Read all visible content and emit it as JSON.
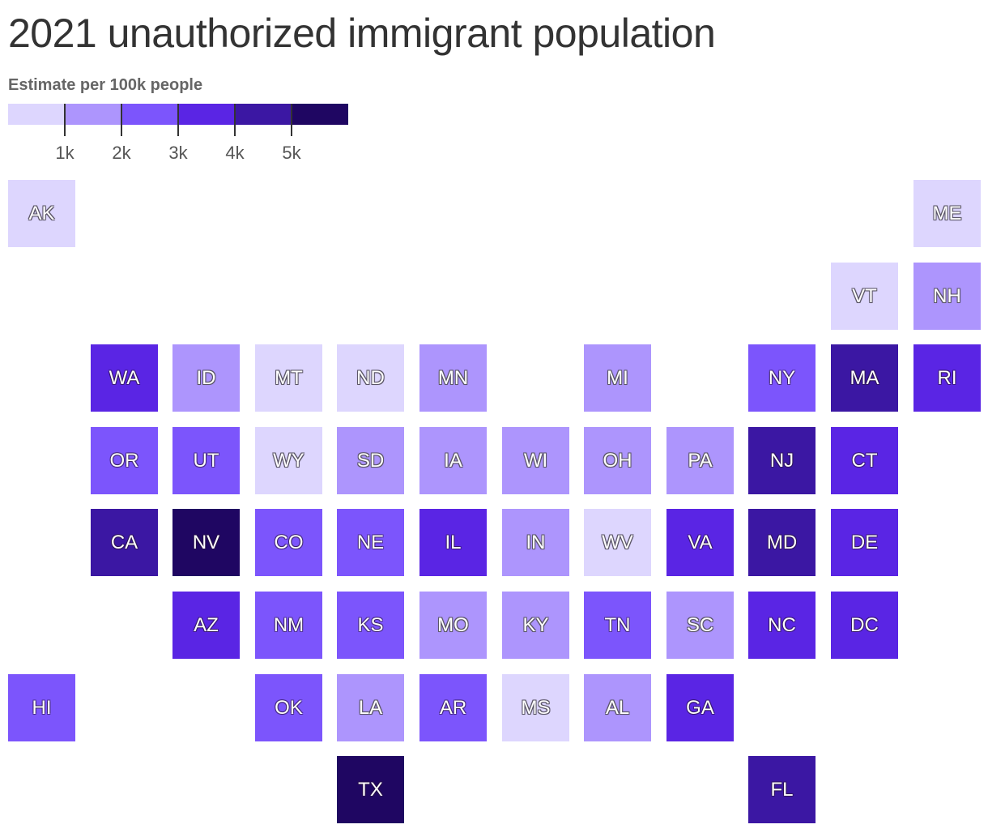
{
  "title": "2021 unauthorized immigrant population",
  "legend": {
    "title": "Estimate per 100k people",
    "colors": [
      "#ddd6fe",
      "#ad95fd",
      "#7c55fc",
      "#5a25e4",
      "#3b17a3",
      "#1f0662"
    ],
    "thresholds": [
      "1k",
      "2k",
      "3k",
      "4k",
      "5k"
    ]
  },
  "chart_data": {
    "type": "tile-map",
    "title": "2021 unauthorized immigrant population",
    "legend_title": "Estimate per 100k people",
    "value_unit": "estimate per 100k people (binned)",
    "bins": [
      "<1k",
      "1k–2k",
      "2k–3k",
      "3k–4k",
      "4k–5k",
      ">5k"
    ],
    "states": [
      {
        "code": "AK",
        "bin": 0,
        "row": 0,
        "col": 0
      },
      {
        "code": "ME",
        "bin": 0,
        "row": 0,
        "col": 11
      },
      {
        "code": "VT",
        "bin": 0,
        "row": 1,
        "col": 10
      },
      {
        "code": "NH",
        "bin": 1,
        "row": 1,
        "col": 11
      },
      {
        "code": "WA",
        "bin": 3,
        "row": 2,
        "col": 1
      },
      {
        "code": "ID",
        "bin": 1,
        "row": 2,
        "col": 2
      },
      {
        "code": "MT",
        "bin": 0,
        "row": 2,
        "col": 3
      },
      {
        "code": "ND",
        "bin": 0,
        "row": 2,
        "col": 4
      },
      {
        "code": "MN",
        "bin": 1,
        "row": 2,
        "col": 5
      },
      {
        "code": "MI",
        "bin": 1,
        "row": 2,
        "col": 7
      },
      {
        "code": "NY",
        "bin": 2,
        "row": 2,
        "col": 9
      },
      {
        "code": "MA",
        "bin": 4,
        "row": 2,
        "col": 10
      },
      {
        "code": "RI",
        "bin": 3,
        "row": 2,
        "col": 11
      },
      {
        "code": "OR",
        "bin": 2,
        "row": 3,
        "col": 1
      },
      {
        "code": "UT",
        "bin": 2,
        "row": 3,
        "col": 2
      },
      {
        "code": "WY",
        "bin": 0,
        "row": 3,
        "col": 3
      },
      {
        "code": "SD",
        "bin": 1,
        "row": 3,
        "col": 4
      },
      {
        "code": "IA",
        "bin": 1,
        "row": 3,
        "col": 5
      },
      {
        "code": "WI",
        "bin": 1,
        "row": 3,
        "col": 6
      },
      {
        "code": "OH",
        "bin": 1,
        "row": 3,
        "col": 7
      },
      {
        "code": "PA",
        "bin": 1,
        "row": 3,
        "col": 8
      },
      {
        "code": "NJ",
        "bin": 4,
        "row": 3,
        "col": 9
      },
      {
        "code": "CT",
        "bin": 3,
        "row": 3,
        "col": 10
      },
      {
        "code": "CA",
        "bin": 4,
        "row": 4,
        "col": 1
      },
      {
        "code": "NV",
        "bin": 5,
        "row": 4,
        "col": 2
      },
      {
        "code": "CO",
        "bin": 2,
        "row": 4,
        "col": 3
      },
      {
        "code": "NE",
        "bin": 2,
        "row": 4,
        "col": 4
      },
      {
        "code": "IL",
        "bin": 3,
        "row": 4,
        "col": 5
      },
      {
        "code": "IN",
        "bin": 1,
        "row": 4,
        "col": 6
      },
      {
        "code": "WV",
        "bin": 0,
        "row": 4,
        "col": 7
      },
      {
        "code": "VA",
        "bin": 3,
        "row": 4,
        "col": 8
      },
      {
        "code": "MD",
        "bin": 4,
        "row": 4,
        "col": 9
      },
      {
        "code": "DE",
        "bin": 3,
        "row": 4,
        "col": 10
      },
      {
        "code": "AZ",
        "bin": 3,
        "row": 5,
        "col": 2
      },
      {
        "code": "NM",
        "bin": 2,
        "row": 5,
        "col": 3
      },
      {
        "code": "KS",
        "bin": 2,
        "row": 5,
        "col": 4
      },
      {
        "code": "MO",
        "bin": 1,
        "row": 5,
        "col": 5
      },
      {
        "code": "KY",
        "bin": 1,
        "row": 5,
        "col": 6
      },
      {
        "code": "TN",
        "bin": 2,
        "row": 5,
        "col": 7
      },
      {
        "code": "SC",
        "bin": 1,
        "row": 5,
        "col": 8
      },
      {
        "code": "NC",
        "bin": 3,
        "row": 5,
        "col": 9
      },
      {
        "code": "DC",
        "bin": 3,
        "row": 5,
        "col": 10
      },
      {
        "code": "HI",
        "bin": 2,
        "row": 6,
        "col": 0
      },
      {
        "code": "OK",
        "bin": 2,
        "row": 6,
        "col": 3
      },
      {
        "code": "LA",
        "bin": 1,
        "row": 6,
        "col": 4
      },
      {
        "code": "AR",
        "bin": 2,
        "row": 6,
        "col": 5
      },
      {
        "code": "MS",
        "bin": 0,
        "row": 6,
        "col": 6
      },
      {
        "code": "AL",
        "bin": 1,
        "row": 6,
        "col": 7
      },
      {
        "code": "GA",
        "bin": 3,
        "row": 6,
        "col": 8
      },
      {
        "code": "TX",
        "bin": 5,
        "row": 7,
        "col": 4
      },
      {
        "code": "FL",
        "bin": 4,
        "row": 7,
        "col": 9
      }
    ]
  }
}
